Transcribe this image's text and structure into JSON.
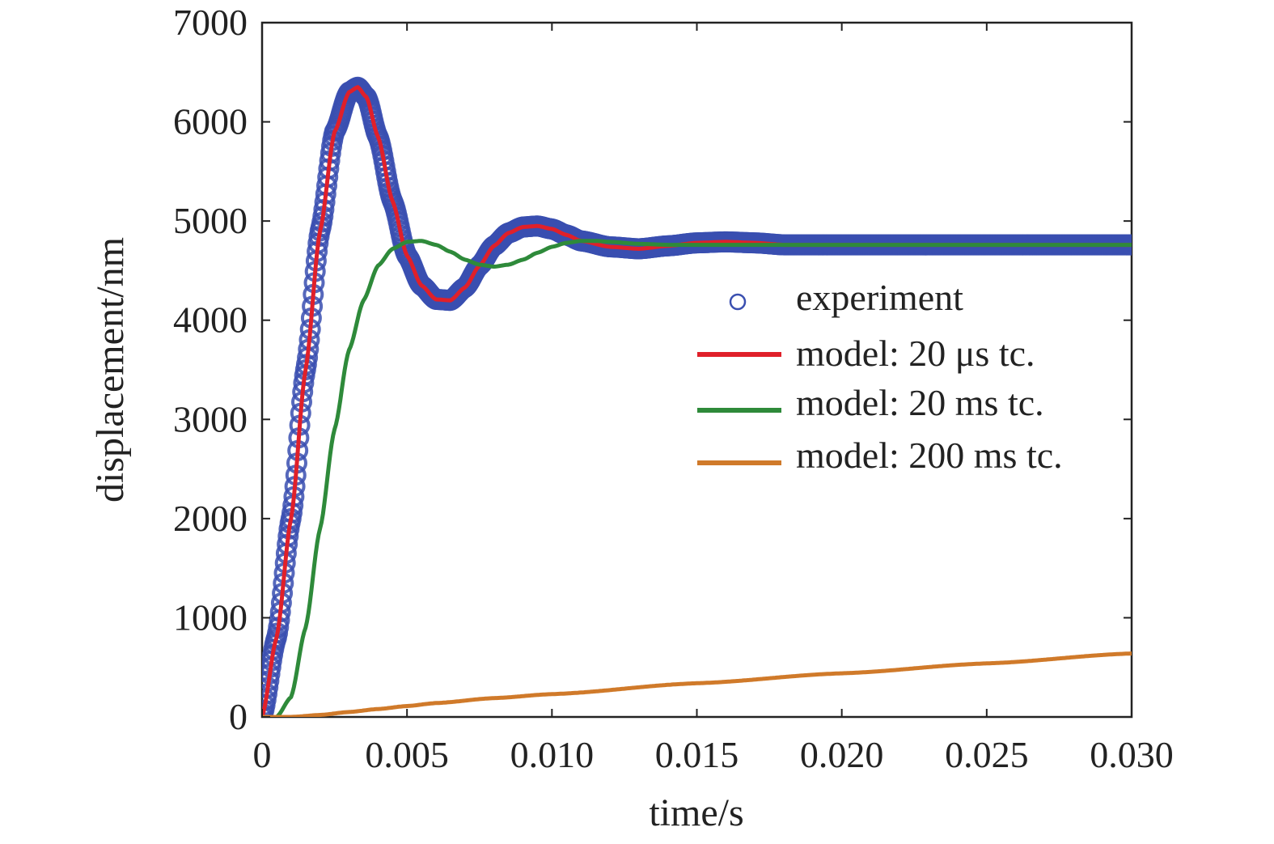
{
  "chart_data": {
    "type": "line",
    "title": "",
    "xlabel": "time/s",
    "ylabel": "displacement/nm",
    "xlim": [
      0,
      0.03
    ],
    "ylim": [
      0,
      7000
    ],
    "x_ticks": [
      {
        "value": 0,
        "label": "0"
      },
      {
        "value": 0.005,
        "label": "0.005"
      },
      {
        "value": 0.01,
        "label": "0.010"
      },
      {
        "value": 0.015,
        "label": "0.015"
      },
      {
        "value": 0.02,
        "label": "0.020"
      },
      {
        "value": 0.025,
        "label": "0.025"
      },
      {
        "value": 0.03,
        "label": "0.030"
      }
    ],
    "y_ticks": [
      {
        "value": 0,
        "label": "0"
      },
      {
        "value": 1000,
        "label": "1000"
      },
      {
        "value": 2000,
        "label": "2000"
      },
      {
        "value": 3000,
        "label": "3000"
      },
      {
        "value": 4000,
        "label": "4000"
      },
      {
        "value": 5000,
        "label": "5000"
      },
      {
        "value": 6000,
        "label": "6000"
      },
      {
        "value": 7000,
        "label": "7000"
      }
    ],
    "grid": false,
    "legend_position": "right",
    "series": [
      {
        "name": "experiment",
        "style": "markers",
        "color": "#3a4fb0",
        "points": [
          [
            0,
            0
          ],
          [
            0.0005,
            800
          ],
          [
            0.001,
            2000
          ],
          [
            0.0015,
            3500
          ],
          [
            0.002,
            4900
          ],
          [
            0.0025,
            5900
          ],
          [
            0.003,
            6300
          ],
          [
            0.0033,
            6350
          ],
          [
            0.0036,
            6250
          ],
          [
            0.004,
            5850
          ],
          [
            0.0045,
            5200
          ],
          [
            0.005,
            4650
          ],
          [
            0.0055,
            4350
          ],
          [
            0.006,
            4210
          ],
          [
            0.0065,
            4200
          ],
          [
            0.007,
            4330
          ],
          [
            0.0075,
            4550
          ],
          [
            0.008,
            4750
          ],
          [
            0.0085,
            4880
          ],
          [
            0.009,
            4940
          ],
          [
            0.0095,
            4950
          ],
          [
            0.01,
            4920
          ],
          [
            0.0105,
            4860
          ],
          [
            0.011,
            4800
          ],
          [
            0.012,
            4740
          ],
          [
            0.013,
            4720
          ],
          [
            0.014,
            4750
          ],
          [
            0.015,
            4780
          ],
          [
            0.016,
            4790
          ],
          [
            0.017,
            4780
          ],
          [
            0.018,
            4760
          ],
          [
            0.02,
            4760
          ],
          [
            0.022,
            4760
          ],
          [
            0.025,
            4760
          ],
          [
            0.03,
            4760
          ]
        ]
      },
      {
        "name": "model: 20 μs tc.",
        "style": "line",
        "color": "#e0202a",
        "points": [
          [
            0,
            0
          ],
          [
            0.0005,
            800
          ],
          [
            0.001,
            2000
          ],
          [
            0.0015,
            3500
          ],
          [
            0.002,
            4900
          ],
          [
            0.0025,
            5900
          ],
          [
            0.003,
            6300
          ],
          [
            0.0033,
            6350
          ],
          [
            0.0036,
            6250
          ],
          [
            0.004,
            5850
          ],
          [
            0.0045,
            5200
          ],
          [
            0.005,
            4650
          ],
          [
            0.0055,
            4350
          ],
          [
            0.006,
            4210
          ],
          [
            0.0065,
            4200
          ],
          [
            0.007,
            4330
          ],
          [
            0.0075,
            4550
          ],
          [
            0.008,
            4750
          ],
          [
            0.0085,
            4880
          ],
          [
            0.009,
            4940
          ],
          [
            0.0095,
            4950
          ],
          [
            0.01,
            4920
          ],
          [
            0.0105,
            4860
          ],
          [
            0.011,
            4800
          ],
          [
            0.012,
            4740
          ],
          [
            0.013,
            4720
          ],
          [
            0.014,
            4750
          ],
          [
            0.015,
            4780
          ],
          [
            0.016,
            4790
          ],
          [
            0.017,
            4780
          ],
          [
            0.018,
            4760
          ],
          [
            0.02,
            4760
          ],
          [
            0.022,
            4760
          ],
          [
            0.025,
            4760
          ],
          [
            0.03,
            4760
          ]
        ]
      },
      {
        "name": "model: 20 ms tc.",
        "style": "line",
        "color": "#2e8a3a",
        "points": [
          [
            0,
            0
          ],
          [
            0.0005,
            0
          ],
          [
            0.001,
            200
          ],
          [
            0.0015,
            900
          ],
          [
            0.002,
            1900
          ],
          [
            0.0025,
            2900
          ],
          [
            0.003,
            3700
          ],
          [
            0.0035,
            4200
          ],
          [
            0.004,
            4550
          ],
          [
            0.0045,
            4720
          ],
          [
            0.005,
            4790
          ],
          [
            0.0055,
            4800
          ],
          [
            0.006,
            4760
          ],
          [
            0.0065,
            4690
          ],
          [
            0.007,
            4610
          ],
          [
            0.0075,
            4560
          ],
          [
            0.008,
            4540
          ],
          [
            0.0085,
            4560
          ],
          [
            0.009,
            4610
          ],
          [
            0.0095,
            4680
          ],
          [
            0.01,
            4740
          ],
          [
            0.0105,
            4780
          ],
          [
            0.011,
            4800
          ],
          [
            0.0115,
            4800
          ],
          [
            0.012,
            4790
          ],
          [
            0.013,
            4770
          ],
          [
            0.014,
            4760
          ],
          [
            0.015,
            4760
          ],
          [
            0.02,
            4760
          ],
          [
            0.025,
            4760
          ],
          [
            0.03,
            4760
          ]
        ]
      },
      {
        "name": "model: 200 ms tc.",
        "style": "line",
        "color": "#d07a2a",
        "points": [
          [
            0,
            0
          ],
          [
            0.001,
            0
          ],
          [
            0.002,
            20
          ],
          [
            0.003,
            50
          ],
          [
            0.004,
            80
          ],
          [
            0.005,
            110
          ],
          [
            0.006,
            140
          ],
          [
            0.008,
            190
          ],
          [
            0.01,
            230
          ],
          [
            0.015,
            340
          ],
          [
            0.02,
            440
          ],
          [
            0.025,
            540
          ],
          [
            0.03,
            640
          ]
        ]
      }
    ]
  }
}
